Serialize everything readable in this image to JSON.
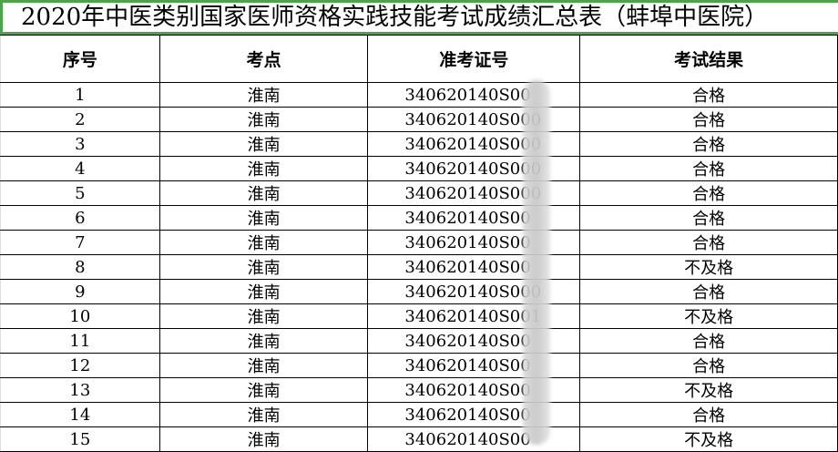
{
  "title": "2020年中医类别国家医师资格实践技能考试成绩汇总表（蚌埠中医院）",
  "headers": [
    "序号",
    "考点",
    "准考证号",
    "考试结果"
  ],
  "rows": [
    [
      "1",
      "淮南",
      "340620140S00",
      "合格"
    ],
    [
      "2",
      "淮南",
      "340620140S000",
      "合格"
    ],
    [
      "3",
      "淮南",
      "340620140S000",
      "合格"
    ],
    [
      "4",
      "淮南",
      "340620140S000",
      "合格"
    ],
    [
      "5",
      "淮南",
      "340620140S000",
      "合格"
    ],
    [
      "6",
      "淮南",
      "340620140S00",
      "合格"
    ],
    [
      "7",
      "淮南",
      "340620140S00",
      "合格"
    ],
    [
      "8",
      "淮南",
      "340620140S00",
      "不及格"
    ],
    [
      "9",
      "淮南",
      "340620140S000",
      "合格"
    ],
    [
      "10",
      "淮南",
      "340620140S001",
      "不及格"
    ],
    [
      "11",
      "淮南",
      "340620140S00",
      "合格"
    ],
    [
      "12",
      "淮南",
      "340620140S00",
      "合格"
    ],
    [
      "13",
      "淮南",
      "340620140S00",
      "不及格"
    ],
    [
      "14",
      "淮南",
      "340620140S00",
      "合格"
    ],
    [
      "15",
      "淮南",
      "340620140S00",
      "不及格"
    ]
  ],
  "colors": {
    "title_border": "#4ea34a"
  }
}
